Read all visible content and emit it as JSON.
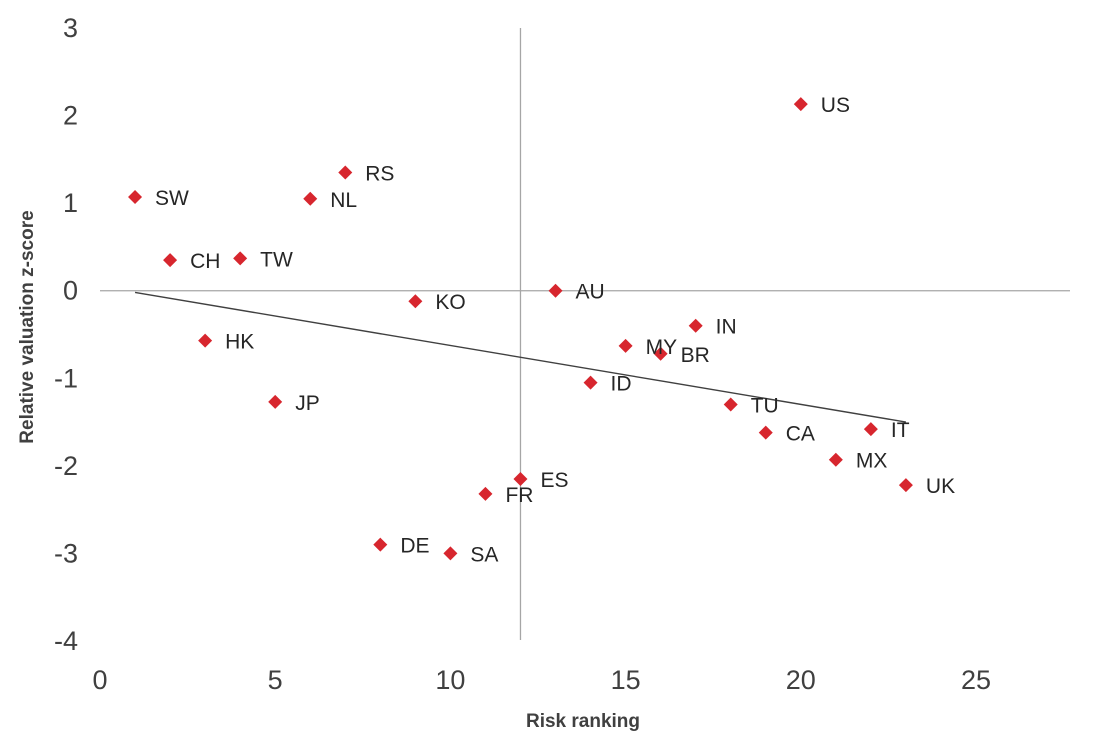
{
  "chart_data": {
    "type": "scatter",
    "title": "",
    "xlabel": "Risk ranking",
    "ylabel": "Relative valuation z-score",
    "xlim": [
      0,
      25
    ],
    "ylim": [
      -4,
      3
    ],
    "xticks": [
      "0",
      "5",
      "10",
      "15",
      "20",
      "25"
    ],
    "yticks": [
      "3",
      "2",
      "1",
      "0",
      "-1",
      "-2",
      "-3",
      "-4"
    ],
    "reference_lines": {
      "x": 12,
      "y": 0
    },
    "trendline": {
      "x": [
        1,
        23
      ],
      "y": [
        -0.02,
        -1.5
      ]
    },
    "marker_color": "#d7262e",
    "line_color": "#404040",
    "points": [
      {
        "label": "SW",
        "x": 1,
        "y": 1.07
      },
      {
        "label": "CH",
        "x": 2,
        "y": 0.35
      },
      {
        "label": "HK",
        "x": 3,
        "y": -0.57
      },
      {
        "label": "TW",
        "x": 4,
        "y": 0.37
      },
      {
        "label": "JP",
        "x": 5,
        "y": -1.27
      },
      {
        "label": "NL",
        "x": 6,
        "y": 1.05
      },
      {
        "label": "RS",
        "x": 7,
        "y": 1.35
      },
      {
        "label": "DE",
        "x": 8,
        "y": -2.9
      },
      {
        "label": "KO",
        "x": 9,
        "y": -0.12
      },
      {
        "label": "SA",
        "x": 10,
        "y": -3.0
      },
      {
        "label": "FR",
        "x": 11,
        "y": -2.32
      },
      {
        "label": "ES",
        "x": 12,
        "y": -2.15
      },
      {
        "label": "AU",
        "x": 13,
        "y": 0.0
      },
      {
        "label": "ID",
        "x": 14,
        "y": -1.05
      },
      {
        "label": "MY",
        "x": 15,
        "y": -0.63
      },
      {
        "label": "BR",
        "x": 16,
        "y": -0.72
      },
      {
        "label": "IN",
        "x": 17,
        "y": -0.4
      },
      {
        "label": "TU",
        "x": 18,
        "y": -1.3
      },
      {
        "label": "CA",
        "x": 19,
        "y": -1.62
      },
      {
        "label": "US",
        "x": 20,
        "y": 2.13
      },
      {
        "label": "MX",
        "x": 21,
        "y": -1.93
      },
      {
        "label": "IT",
        "x": 22,
        "y": -1.58
      },
      {
        "label": "UK",
        "x": 23,
        "y": -2.22
      }
    ]
  }
}
